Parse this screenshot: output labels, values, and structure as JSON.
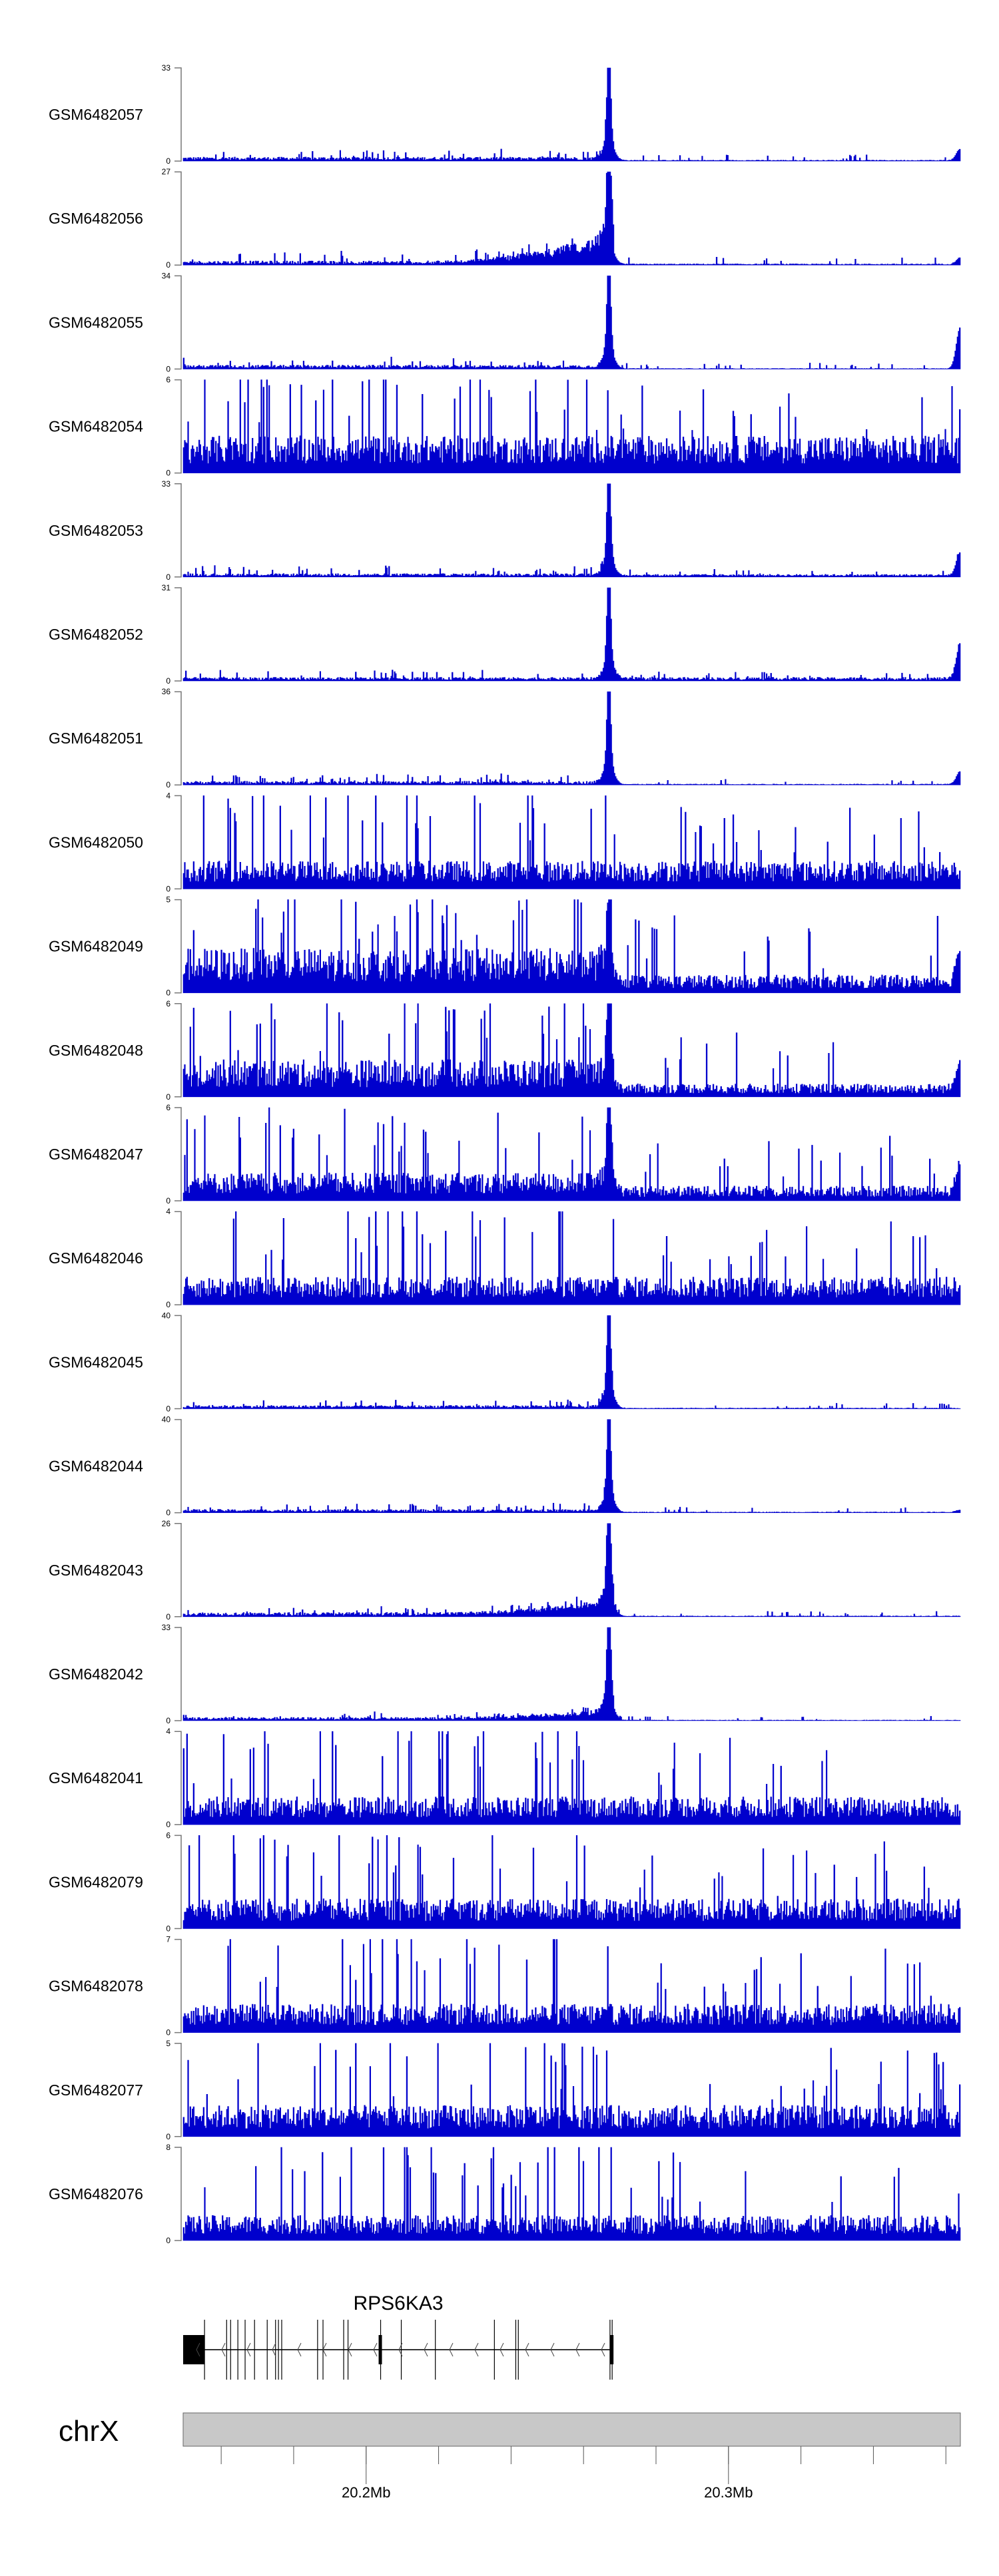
{
  "chart_data": {
    "type": "area",
    "title": "",
    "xlabel": "chrX",
    "x_range_mb": [
      20.1495,
      20.364
    ],
    "x_ticks": [
      {
        "value": 20.2,
        "label": "20.2Mb"
      },
      {
        "value": 20.3,
        "label": "20.3Mb"
      }
    ],
    "x_minor_tick_step_mb": 0.02,
    "chromosome": "chrX",
    "signal_color": "#0000cd",
    "tracks": [
      {
        "name": "GSM6482057",
        "ymin": 0,
        "ymax": 33,
        "left_base": 1.2,
        "right_base": 0.3,
        "peak": 33,
        "end_peak": 4,
        "spike": 3,
        "ramp": 0
      },
      {
        "name": "GSM6482056",
        "ymin": 0,
        "ymax": 27,
        "left_base": 1.0,
        "right_base": 0.3,
        "peak": 27,
        "end_peak": 2,
        "spike": 3,
        "ramp": 8
      },
      {
        "name": "GSM6482055",
        "ymin": 0,
        "ymax": 34,
        "left_base": 1.2,
        "right_base": 0.2,
        "peak": 34,
        "end_peak": 15,
        "spike": 3,
        "ramp": 0
      },
      {
        "name": "GSM6482054",
        "ymin": 0,
        "ymax": 6,
        "left_base": 2.0,
        "right_base": 2.0,
        "peak": 0,
        "end_peak": 0,
        "spike": 6,
        "ramp": 0
      },
      {
        "name": "GSM6482053",
        "ymin": 0,
        "ymax": 33,
        "left_base": 1.0,
        "right_base": 0.8,
        "peak": 33,
        "end_peak": 8,
        "spike": 3,
        "ramp": 0
      },
      {
        "name": "GSM6482052",
        "ymin": 0,
        "ymax": 31,
        "left_base": 1.0,
        "right_base": 1.0,
        "peak": 31,
        "end_peak": 12,
        "spike": 3,
        "ramp": 0
      },
      {
        "name": "GSM6482051",
        "ymin": 0,
        "ymax": 36,
        "left_base": 1.2,
        "right_base": 0.3,
        "peak": 36,
        "end_peak": 5,
        "spike": 3,
        "ramp": 0
      },
      {
        "name": "GSM6482050",
        "ymin": 0,
        "ymax": 4,
        "left_base": 1.0,
        "right_base": 1.0,
        "peak": 0,
        "end_peak": 0,
        "spike": 4,
        "ramp": 0
      },
      {
        "name": "GSM6482049",
        "ymin": 0,
        "ymax": 5,
        "left_base": 2.0,
        "right_base": 0.8,
        "peak": 4,
        "end_peak": 2,
        "spike": 5,
        "ramp": 0
      },
      {
        "name": "GSM6482048",
        "ymin": 0,
        "ymax": 6,
        "left_base": 2.0,
        "right_base": 0.7,
        "peak": 6,
        "end_peak": 2,
        "spike": 5,
        "ramp": 0
      },
      {
        "name": "GSM6482047",
        "ymin": 0,
        "ymax": 6,
        "left_base": 1.5,
        "right_base": 0.8,
        "peak": 6,
        "end_peak": 2,
        "spike": 5,
        "ramp": 0
      },
      {
        "name": "GSM6482046",
        "ymin": 0,
        "ymax": 4,
        "left_base": 1.0,
        "right_base": 1.0,
        "peak": 0,
        "end_peak": 0,
        "spike": 4,
        "ramp": 0
      },
      {
        "name": "GSM6482045",
        "ymin": 0,
        "ymax": 40,
        "left_base": 1.2,
        "right_base": 0.3,
        "peak": 40,
        "end_peak": 0,
        "spike": 3,
        "ramp": 0
      },
      {
        "name": "GSM6482044",
        "ymin": 0,
        "ymax": 40,
        "left_base": 1.2,
        "right_base": 0.3,
        "peak": 40,
        "end_peak": 1,
        "spike": 3,
        "ramp": 0
      },
      {
        "name": "GSM6482043",
        "ymin": 0,
        "ymax": 26,
        "left_base": 1.0,
        "right_base": 0.2,
        "peak": 26,
        "end_peak": 0,
        "spike": 2,
        "ramp": 4
      },
      {
        "name": "GSM6482042",
        "ymin": 0,
        "ymax": 33,
        "left_base": 1.0,
        "right_base": 0.2,
        "peak": 33,
        "end_peak": 0,
        "spike": 2,
        "ramp": 3
      },
      {
        "name": "GSM6482041",
        "ymin": 0,
        "ymax": 4,
        "left_base": 1.0,
        "right_base": 1.0,
        "peak": 0,
        "end_peak": 0,
        "spike": 4,
        "ramp": 0
      },
      {
        "name": "GSM6482079",
        "ymin": 0,
        "ymax": 6,
        "left_base": 1.6,
        "right_base": 1.6,
        "peak": 0,
        "end_peak": 0,
        "spike": 6,
        "ramp": 0
      },
      {
        "name": "GSM6482078",
        "ymin": 0,
        "ymax": 7,
        "left_base": 1.8,
        "right_base": 1.8,
        "peak": 0,
        "end_peak": 0,
        "spike": 7,
        "ramp": 0
      },
      {
        "name": "GSM6482077",
        "ymin": 0,
        "ymax": 5,
        "left_base": 1.4,
        "right_base": 1.4,
        "peak": 0,
        "end_peak": 0,
        "spike": 5,
        "ramp": 0
      },
      {
        "name": "GSM6482076",
        "ymin": 0,
        "ymax": 8,
        "left_base": 1.8,
        "right_base": 1.8,
        "peak": 0,
        "end_peak": 0,
        "spike": 8,
        "ramp": 0
      }
    ],
    "peak_position_mb": 20.267,
    "gene": {
      "name": "RPS6KA3",
      "strand": "-",
      "start_mb": 20.1495,
      "end_mb": 20.2679,
      "utr_block_mb": [
        20.1495,
        20.1554
      ],
      "exons_mb": [
        20.1554,
        20.1615,
        20.1626,
        20.1646,
        20.1666,
        20.1692,
        20.1727,
        20.175,
        20.1758,
        20.1767,
        20.1866,
        20.1881,
        20.1938,
        20.195,
        20.204,
        20.2097,
        20.2191,
        20.2354,
        20.2413,
        20.242,
        20.2673,
        20.2679
      ],
      "thick_exons_mb": [
        20.204,
        20.2679
      ]
    }
  }
}
